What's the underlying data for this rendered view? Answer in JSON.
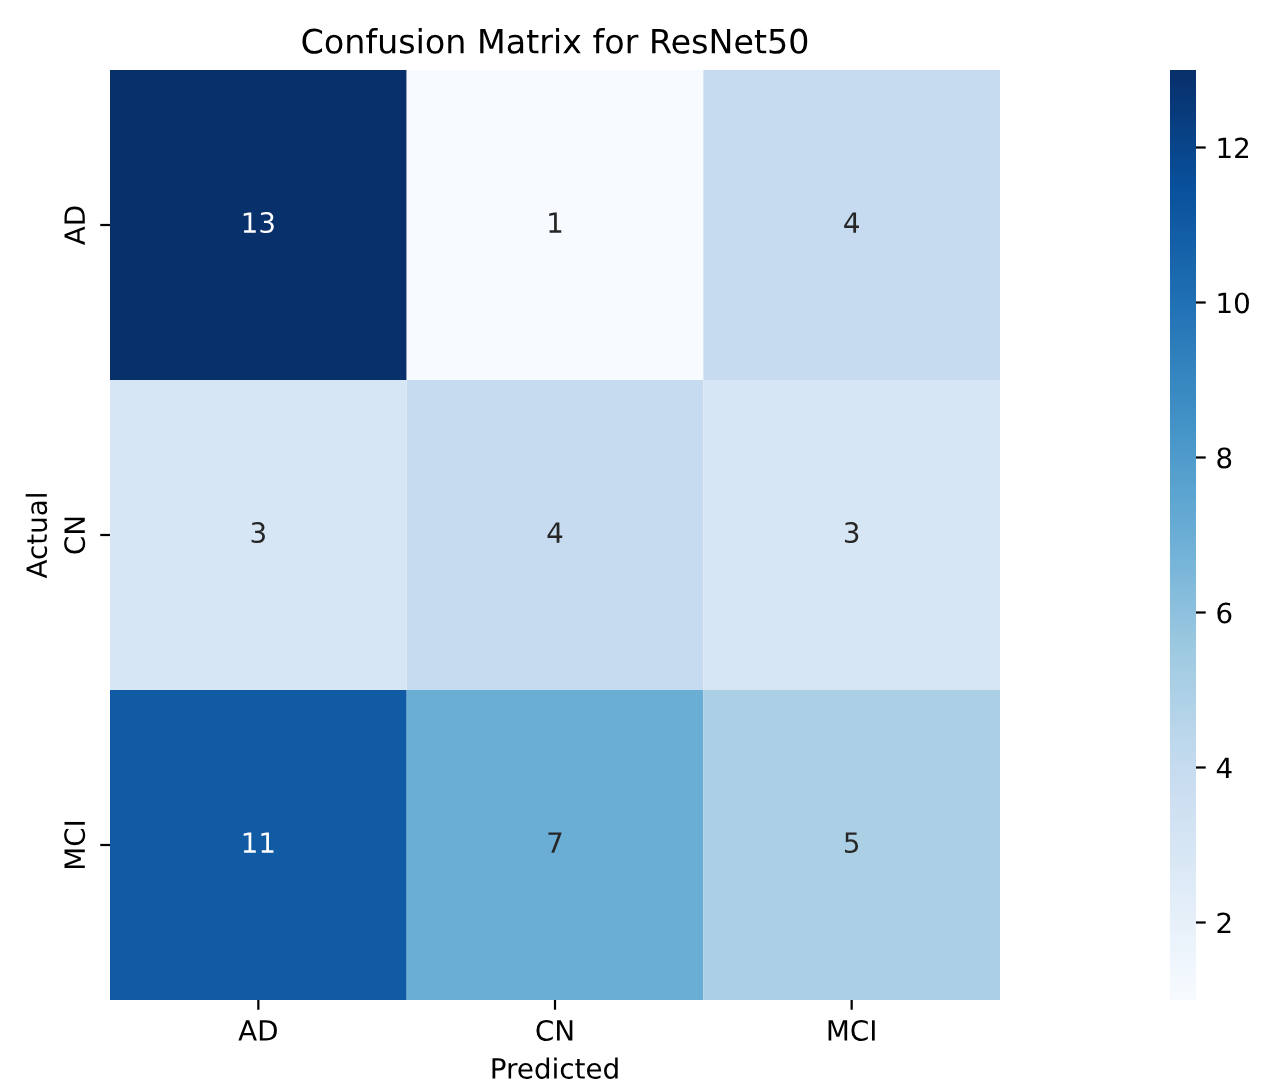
{
  "chart_data": {
    "type": "heatmap",
    "title": "Confusion Matrix for ResNet50",
    "xlabel": "Predicted",
    "ylabel": "Actual",
    "categories": [
      "AD",
      "CN",
      "MCI"
    ],
    "y_categories": [
      "AD",
      "CN",
      "MCI"
    ],
    "cells": [
      [
        13,
        1,
        4
      ],
      [
        3,
        4,
        3
      ],
      [
        11,
        7,
        5
      ]
    ],
    "clim": [
      1,
      13
    ],
    "cticks": [
      2,
      4,
      6,
      8,
      10,
      12
    ],
    "data_labels": true
  }
}
